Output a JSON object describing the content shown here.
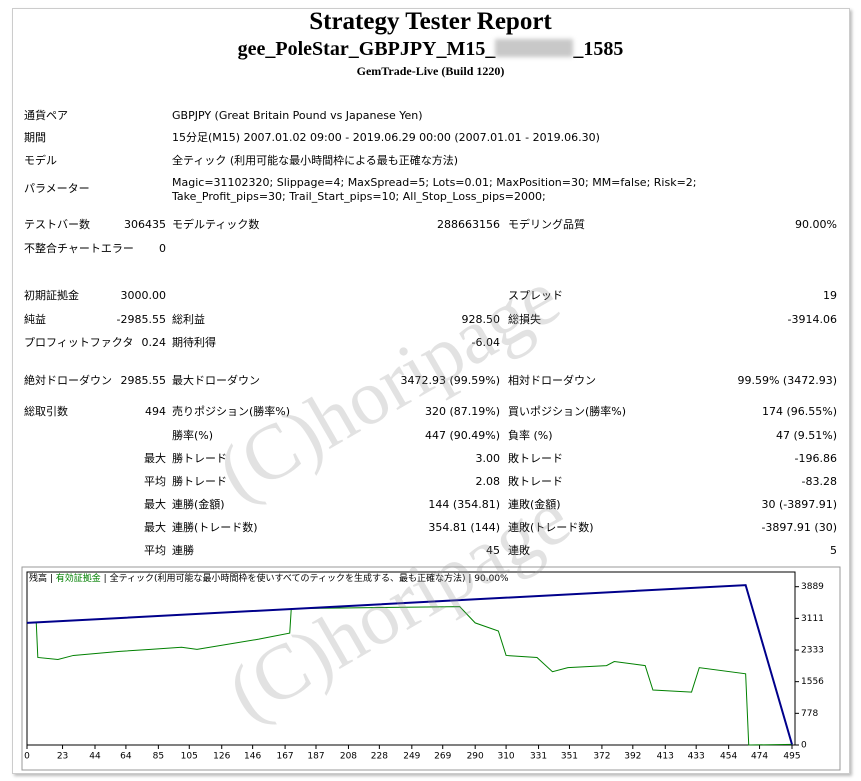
{
  "header": {
    "title": "Strategy Tester Report",
    "subtitle_prefix": "gee_PoleStar_GBPJPY_M15_",
    "subtitle_suffix": "_1585",
    "build": "GemTrade-Live (Build 1220)"
  },
  "info": [
    [
      "通貨ペア",
      "GBPJPY (Great Britain Pound vs Japanese Yen)"
    ],
    [
      "期間",
      "15分足(M15) 2007.01.02 09:00 - 2019.06.29 00:00 (2007.01.01 - 2019.06.30)"
    ],
    [
      "モデル",
      "全ティック (利用可能な最小時間枠による最も正確な方法)"
    ],
    [
      "パラメーター",
      "Magic=31102320; Slippage=4; MaxSpread=5; Lots=0.01; MaxPosition=30; MM=false; Risk=2; Take_Profit_pips=30; Trail_Start_pips=10; All_Stop_Loss_pips=2000;"
    ]
  ],
  "stats": [
    [
      "テストバー数",
      "306435",
      "モデルティック数",
      "288663156",
      "モデリング品質",
      "90.00%"
    ],
    [
      "不整合チャートエラー",
      "0",
      null,
      null,
      null,
      null
    ],
    [
      "初期証拠金",
      "3000.00",
      null,
      null,
      "スプレッド",
      "19"
    ],
    [
      "純益",
      "-2985.55",
      "総利益",
      "928.50",
      "総損失",
      "-3914.06"
    ],
    [
      "プロフィットファクタ",
      "0.24",
      "期待利得",
      "-6.04",
      null,
      null
    ],
    [
      "絶対ドローダウン",
      "2985.55",
      "最大ドローダウン",
      "3472.93 (99.59%)",
      "相対ドローダウン",
      "99.59% (3472.93)"
    ],
    [
      "総取引数",
      "494",
      "売りポジション(勝率%)",
      "320 (87.19%)",
      "買いポジション(勝率%)",
      "174 (96.55%)"
    ],
    [
      null,
      null,
      "勝率(%)",
      "447 (90.49%)",
      "負率 (%)",
      "47 (9.51%)"
    ],
    [
      null,
      "最大",
      "勝トレード",
      "3.00",
      "敗トレード",
      "-196.86"
    ],
    [
      null,
      "平均",
      "勝トレード",
      "2.08",
      "敗トレード",
      "-83.28"
    ],
    [
      null,
      "最大",
      "連勝(金額)",
      "144 (354.81)",
      "連敗(金額)",
      "30 (-3897.91)"
    ],
    [
      null,
      "最大",
      "連勝(トレード数)",
      "354.81 (144)",
      "連敗(トレード数)",
      "-3897.91 (30)"
    ],
    [
      null,
      "平均",
      "連勝",
      "45",
      "連敗",
      "5"
    ]
  ],
  "watermark": "(C)horipage",
  "chart_data": {
    "type": "line",
    "legend_extra": [
      "全ティック(利用可能な最小時間枠を使いすべてのティックを生成する、最も正確な方法)",
      "90.00%"
    ],
    "series": [
      {
        "name": "残高",
        "color": "#00008b",
        "x": [
          0,
          465,
          495
        ],
        "values": [
          3000,
          3928,
          14
        ]
      },
      {
        "name": "有効証拠金",
        "color": "#008000",
        "x": [
          0,
          6,
          7,
          20,
          30,
          60,
          80,
          100,
          110,
          150,
          170,
          171,
          280,
          290,
          305,
          310,
          330,
          340,
          350,
          375,
          380,
          400,
          405,
          430,
          435,
          465,
          467,
          495
        ],
        "values": [
          3000,
          3000,
          2150,
          2100,
          2200,
          2300,
          2350,
          2400,
          2350,
          2600,
          2750,
          3350,
          3400,
          3000,
          2800,
          2200,
          2150,
          1800,
          1900,
          1950,
          2050,
          1950,
          1350,
          1300,
          1900,
          1750,
          0,
          14
        ]
      }
    ],
    "xlim": [
      0,
      495
    ],
    "xticks": [
      0,
      23,
      44,
      64,
      85,
      105,
      126,
      146,
      167,
      187,
      208,
      228,
      249,
      269,
      290,
      310,
      331,
      351,
      372,
      392,
      413,
      433,
      454,
      474,
      495
    ],
    "ylim": [
      0,
      4250
    ],
    "yticks": [
      0,
      778,
      1556,
      2333,
      3111,
      3889
    ]
  }
}
